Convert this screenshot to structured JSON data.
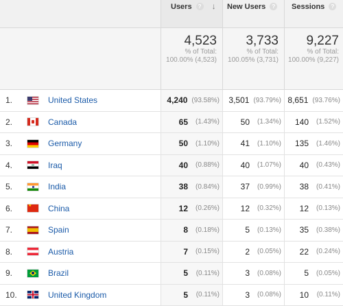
{
  "header": {
    "users_label": "Users",
    "new_users_label": "New Users",
    "sessions_label": "Sessions",
    "help_glyph": "?",
    "sort_glyph": "↓"
  },
  "totals": {
    "users": {
      "value": "4,523",
      "line1": "% of Total:",
      "line2": "100.00% (4,523)"
    },
    "new_users": {
      "value": "3,733",
      "line1": "% of Total:",
      "line2": "100.05% (3,731)"
    },
    "sessions": {
      "value": "9,227",
      "line1": "% of Total:",
      "line2": "100.00% (9,227)"
    }
  },
  "rows": [
    {
      "index": "1.",
      "flag": "us",
      "country": "United States",
      "users": "4,240",
      "users_pct": "(93.58%)",
      "new_users": "3,501",
      "new_users_pct": "(93.79%)",
      "sessions": "8,651",
      "sessions_pct": "(93.76%)"
    },
    {
      "index": "2.",
      "flag": "ca",
      "country": "Canada",
      "users": "65",
      "users_pct": "(1.43%)",
      "new_users": "50",
      "new_users_pct": "(1.34%)",
      "sessions": "140",
      "sessions_pct": "(1.52%)"
    },
    {
      "index": "3.",
      "flag": "de",
      "country": "Germany",
      "users": "50",
      "users_pct": "(1.10%)",
      "new_users": "41",
      "new_users_pct": "(1.10%)",
      "sessions": "135",
      "sessions_pct": "(1.46%)"
    },
    {
      "index": "4.",
      "flag": "iq",
      "country": "Iraq",
      "users": "40",
      "users_pct": "(0.88%)",
      "new_users": "40",
      "new_users_pct": "(1.07%)",
      "sessions": "40",
      "sessions_pct": "(0.43%)"
    },
    {
      "index": "5.",
      "flag": "in",
      "country": "India",
      "users": "38",
      "users_pct": "(0.84%)",
      "new_users": "37",
      "new_users_pct": "(0.99%)",
      "sessions": "38",
      "sessions_pct": "(0.41%)"
    },
    {
      "index": "6.",
      "flag": "cn",
      "country": "China",
      "users": "12",
      "users_pct": "(0.26%)",
      "new_users": "12",
      "new_users_pct": "(0.32%)",
      "sessions": "12",
      "sessions_pct": "(0.13%)"
    },
    {
      "index": "7.",
      "flag": "es",
      "country": "Spain",
      "users": "8",
      "users_pct": "(0.18%)",
      "new_users": "5",
      "new_users_pct": "(0.13%)",
      "sessions": "35",
      "sessions_pct": "(0.38%)"
    },
    {
      "index": "8.",
      "flag": "at",
      "country": "Austria",
      "users": "7",
      "users_pct": "(0.15%)",
      "new_users": "2",
      "new_users_pct": "(0.05%)",
      "sessions": "22",
      "sessions_pct": "(0.24%)"
    },
    {
      "index": "9.",
      "flag": "br",
      "country": "Brazil",
      "users": "5",
      "users_pct": "(0.11%)",
      "new_users": "3",
      "new_users_pct": "(0.08%)",
      "sessions": "5",
      "sessions_pct": "(0.05%)"
    },
    {
      "index": "10.",
      "flag": "gb",
      "country": "United Kingdom",
      "users": "5",
      "users_pct": "(0.11%)",
      "new_users": "3",
      "new_users_pct": "(0.08%)",
      "sessions": "10",
      "sessions_pct": "(0.11%)"
    }
  ]
}
